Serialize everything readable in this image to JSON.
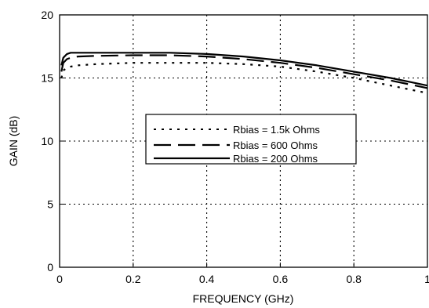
{
  "chart_data": {
    "type": "line",
    "xlabel": "FREQUENCY (GHz)",
    "ylabel": "GAIN (dB)",
    "xlim": [
      0,
      1
    ],
    "ylim": [
      0,
      20
    ],
    "xticks": [
      "0",
      "0.2",
      "0.4",
      "0.6",
      "0.8",
      "1"
    ],
    "yticks": [
      "0",
      "5",
      "10",
      "15",
      "20"
    ],
    "grid": "dotted",
    "legend_position": "center-right",
    "series": [
      {
        "name": "Rbias = 1.5k Ohms",
        "style": "dotted",
        "x": [
          0.005,
          0.01,
          0.02,
          0.03,
          0.05,
          0.1,
          0.2,
          0.3,
          0.4,
          0.5,
          0.6,
          0.7,
          0.8,
          0.9,
          1.0
        ],
        "y": [
          15.0,
          15.6,
          15.8,
          15.9,
          16.0,
          16.1,
          16.2,
          16.2,
          16.2,
          16.1,
          15.9,
          15.5,
          15.0,
          14.4,
          13.8
        ]
      },
      {
        "name": "Rbias = 600 Ohms",
        "style": "dashed",
        "x": [
          0.005,
          0.01,
          0.02,
          0.03,
          0.05,
          0.1,
          0.2,
          0.3,
          0.4,
          0.5,
          0.6,
          0.7,
          0.8,
          0.9,
          1.0
        ],
        "y": [
          15.5,
          16.2,
          16.5,
          16.6,
          16.7,
          16.75,
          16.8,
          16.8,
          16.7,
          16.5,
          16.2,
          15.8,
          15.3,
          14.8,
          14.2
        ]
      },
      {
        "name": "Rbias = 200 Ohms",
        "style": "solid",
        "x": [
          0.005,
          0.01,
          0.02,
          0.03,
          0.05,
          0.1,
          0.2,
          0.3,
          0.4,
          0.5,
          0.6,
          0.7,
          0.8,
          0.9,
          1.0
        ],
        "y": [
          16.0,
          16.6,
          16.9,
          17.0,
          17.0,
          17.0,
          17.0,
          17.0,
          16.9,
          16.7,
          16.4,
          16.0,
          15.5,
          15.0,
          14.4
        ]
      }
    ]
  }
}
